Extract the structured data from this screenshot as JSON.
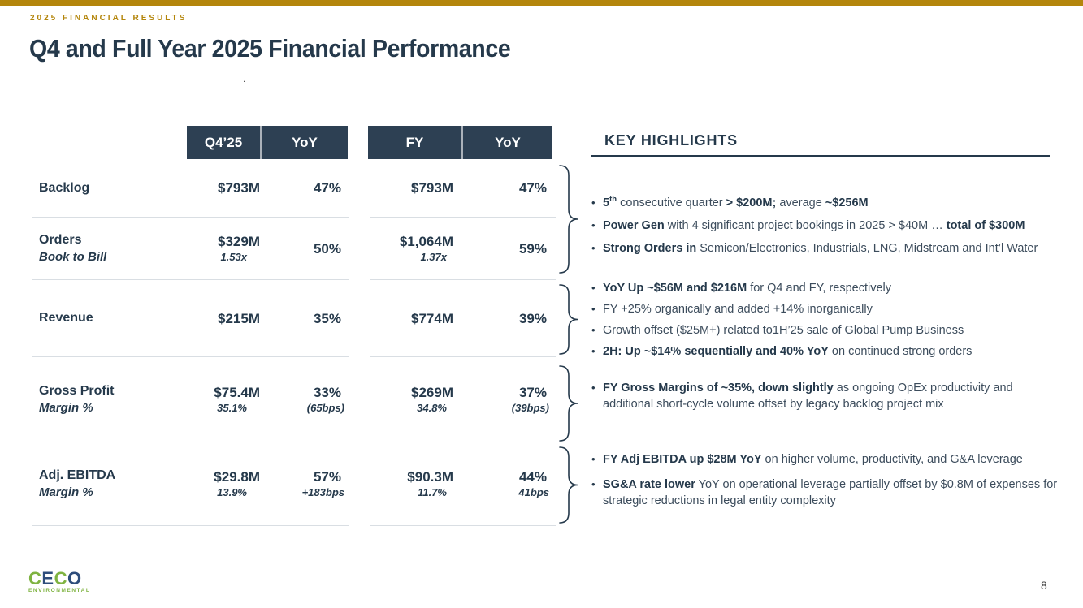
{
  "slide": {
    "eyebrow": "2025 FINANCIAL RESULTS",
    "title": "Q4 and Full Year 2025 Financial Performance",
    "stray_mark": ".",
    "page_number": "8"
  },
  "colors": {
    "gold": "#B4860C",
    "navy": "#25394B",
    "table_header_bg": "#2D4053",
    "divider": "#D9DEE3",
    "logo_green": "#7FB341",
    "logo_navy": "#2E4D7B"
  },
  "table": {
    "header_q4": "Q4’25",
    "header_q4_yoy": "YoY",
    "header_fy": "FY",
    "header_fy_yoy": "YoY",
    "rows": [
      {
        "label": "Backlog",
        "sublabel": "",
        "q4": "$793M",
        "q4_sub": "",
        "q4_yoy": "47%",
        "q4_yoy_sub": "",
        "fy": "$793M",
        "fy_sub": "",
        "fy_yoy": "47%",
        "fy_yoy_sub": ""
      },
      {
        "label": "Orders",
        "sublabel": "Book to Bill",
        "q4": "$329M",
        "q4_sub": "1.53x",
        "q4_yoy": "50%",
        "q4_yoy_sub": "",
        "fy": "$1,064M",
        "fy_sub": "1.37x",
        "fy_yoy": "59%",
        "fy_yoy_sub": ""
      },
      {
        "label": "Revenue",
        "sublabel": "",
        "q4": "$215M",
        "q4_sub": "",
        "q4_yoy": "35%",
        "q4_yoy_sub": "",
        "fy": "$774M",
        "fy_sub": "",
        "fy_yoy": "39%",
        "fy_yoy_sub": ""
      },
      {
        "label": "Gross Profit",
        "sublabel": "Margin %",
        "q4": "$75.4M",
        "q4_sub": "35.1%",
        "q4_yoy": "33%",
        "q4_yoy_sub": "(65bps)",
        "fy": "$269M",
        "fy_sub": "34.8%",
        "fy_yoy": "37%",
        "fy_yoy_sub": "(39bps)"
      },
      {
        "label": "Adj. EBITDA",
        "sublabel": "Margin %",
        "q4": "$29.8M",
        "q4_sub": "13.9%",
        "q4_yoy": "57%",
        "q4_yoy_sub": "+183bps",
        "fy": "$90.3M",
        "fy_sub": "11.7%",
        "fy_yoy": "44%",
        "fy_yoy_sub": "41bps"
      }
    ]
  },
  "highlights": {
    "heading": "KEY HIGHLIGHTS",
    "groups": [
      {
        "bullets": [
          {
            "segments": [
              {
                "t": "5",
                "b": 1
              },
              {
                "t": "th",
                "b": 1,
                "sup": 1
              },
              {
                "t": " consecutive quarter ",
                "b": 0
              },
              {
                "t": "> $200M;",
                "b": 1
              },
              {
                "t": " average ",
                "b": 0
              },
              {
                "t": "~$256M",
                "b": 1
              }
            ]
          },
          {
            "segments": [
              {
                "t": "Power Gen",
                "b": 1
              },
              {
                "t": " with 4 significant project bookings in 2025 > $40M … ",
                "b": 0
              },
              {
                "t": "total of $300M",
                "b": 1
              }
            ]
          },
          {
            "segments": [
              {
                "t": "Strong Orders in",
                "b": 1
              },
              {
                "t": " Semicon/Electronics, Industrials, LNG, Midstream and Int’l Water",
                "b": 0
              }
            ]
          }
        ]
      },
      {
        "bullets": [
          {
            "segments": [
              {
                "t": "YoY Up ~$56M and $216M",
                "b": 1
              },
              {
                "t": " for Q4 and FY, respectively",
                "b": 0
              }
            ]
          },
          {
            "segments": [
              {
                "t": "FY +25% organically and added +14% inorganically",
                "b": 0
              }
            ]
          },
          {
            "segments": [
              {
                "t": "Growth offset ($25M+) related to1H’25 sale of Global Pump Business",
                "b": 0
              }
            ]
          },
          {
            "segments": [
              {
                "t": "2H: Up ~$14% sequentially and 40% YoY",
                "b": 1
              },
              {
                "t": " on continued strong orders",
                "b": 0
              }
            ]
          }
        ]
      },
      {
        "bullets": [
          {
            "segments": [
              {
                "t": "FY Gross Margins of ~35%, down slightly",
                "b": 1
              },
              {
                "t": " as ongoing OpEx productivity and additional short-cycle volume offset by legacy backlog project mix",
                "b": 0
              }
            ]
          }
        ]
      },
      {
        "bullets": [
          {
            "segments": [
              {
                "t": "FY Adj EBITDA up $28M YoY",
                "b": 1
              },
              {
                "t": " on higher volume, productivity, and G&A leverage",
                "b": 0
              }
            ]
          },
          {
            "segments": [
              {
                "t": "SG&A rate lower",
                "b": 1
              },
              {
                "t": " YoY on operational leverage partially offset by $0.8M of expenses for strategic reductions in legal entity complexity",
                "b": 0
              }
            ]
          }
        ]
      }
    ]
  },
  "footer": {
    "logo_letters": [
      {
        "char": "C",
        "color": "#7FB341"
      },
      {
        "char": "E",
        "color": "#2E4D7B"
      },
      {
        "char": "C",
        "color": "#7FB341"
      },
      {
        "char": "O",
        "color": "#2E4D7B"
      }
    ],
    "logo_subtitle": "ENVIRONMENTAL"
  }
}
